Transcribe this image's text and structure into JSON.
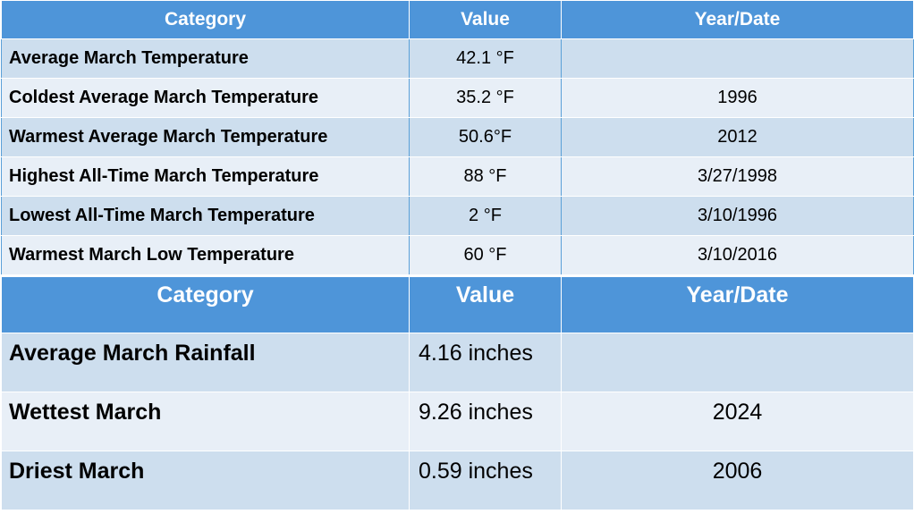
{
  "table1": {
    "header": [
      "Category",
      "Value",
      "Year/Date"
    ],
    "rows": [
      {
        "category": "Average March Temperature",
        "value": "42.1 °F"
      },
      {
        "category": "Coldest Average March Temperature",
        "value": "35.2 °F",
        "date": "1996"
      },
      {
        "category": "Warmest Average March Temperature",
        "value": "50.6°F",
        "date": "2012"
      },
      {
        "category": "Highest All-Time March Temperature",
        "value": "88 °F",
        "date": "3/27/1998"
      },
      {
        "category": "Lowest All-Time March Temperature",
        "value": "2 °F",
        "date": "3/10/1996"
      },
      {
        "category": "Warmest March Low Temperature",
        "value": "60 °F",
        "date": "3/10/2016"
      }
    ]
  },
  "table2": {
    "header": [
      "Category",
      "Value",
      "Year/Date"
    ],
    "rows": [
      {
        "category": "Average March Rainfall",
        "value": "4.16 inches"
      },
      {
        "category": "Wettest March",
        "value": "9.26 inches",
        "date": "2024"
      },
      {
        "category": "Driest March",
        "value": "0.59 inches",
        "date": "2006"
      }
    ]
  }
}
